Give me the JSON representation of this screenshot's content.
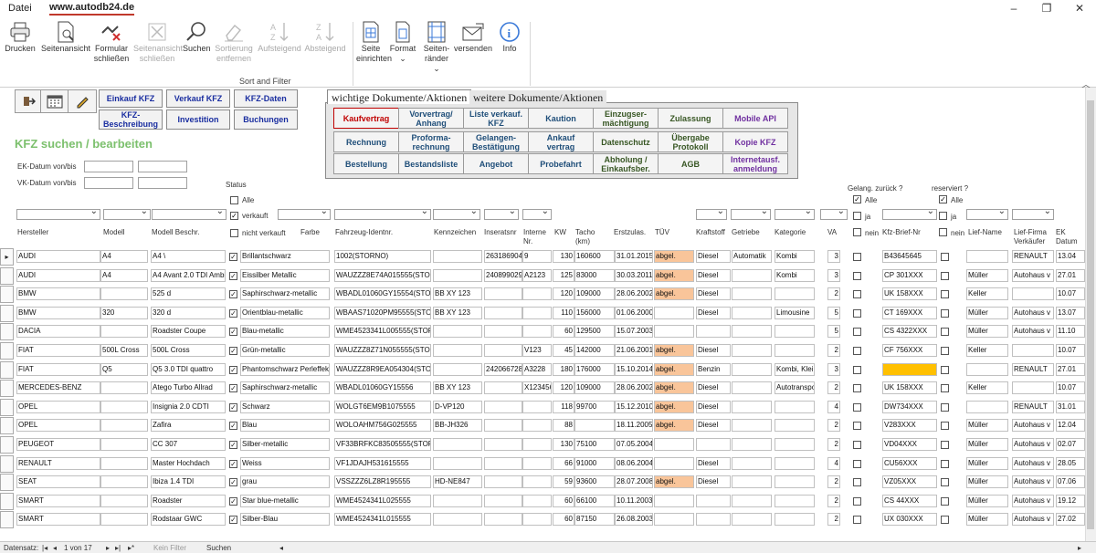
{
  "menubar": {
    "file": "Datei",
    "site": "www.autodb24.de"
  },
  "ribbon": {
    "buttons": [
      {
        "label": "Drucken",
        "icon": "printer-icon"
      },
      {
        "label": "Seitenansicht",
        "icon": "page-preview-icon"
      },
      {
        "label": "Formular\nschließen",
        "icon": "close-form-icon"
      },
      {
        "label": "Seitenansicht\nschließen",
        "icon": "close-preview-icon"
      },
      {
        "label": "Suchen",
        "icon": "search-icon"
      },
      {
        "label": "Sortierung\nentfernen",
        "icon": "eraser-icon"
      },
      {
        "label": "Aufsteigend",
        "icon": "sort-asc-icon"
      },
      {
        "label": "Absteigend",
        "icon": "sort-desc-icon"
      },
      {
        "label": "Seite\neinrichten",
        "icon": "page-setup-icon"
      },
      {
        "label": "Format\n⌄",
        "icon": "format-icon"
      },
      {
        "label": "Seiten-\nränder ⌄",
        "icon": "margins-icon"
      },
      {
        "label": "versenden",
        "icon": "mail-icon"
      },
      {
        "label": "Info",
        "icon": "info-icon"
      }
    ],
    "group_label": "Sort and Filter"
  },
  "nav": {
    "einkauf": "Einkauf KFZ",
    "verkauf": "Verkauf KFZ",
    "kfzdaten": "KFZ-Daten",
    "beschreibung": "KFZ-\nBeschreibung",
    "investition": "Investition",
    "buchungen": "Buchungen"
  },
  "heading": "KFZ suchen / bearbeiten",
  "filters": {
    "ek_label": "EK-Datum von/bis",
    "vk_label": "VK-Datum von/bis",
    "status_label": "Status",
    "alle": "Alle",
    "verkauft": "verkauft",
    "nicht_verkauft": "nicht verkauft",
    "gelang_label": "Gelang. zurück ?",
    "reserviert_label": "reserviert ?",
    "ja": "ja",
    "nein": "nein"
  },
  "tabs": {
    "tab1": "wichtige Dokumente/Aktionen",
    "tab2": "weitere Dokumente/Aktionen"
  },
  "doc_buttons": [
    {
      "label": "Kaufvertrag",
      "color": "#c00000"
    },
    {
      "label": "Vorvertrag/\nAnhang",
      "color": "#1f4e79"
    },
    {
      "label": "Liste verkauf.\nKFZ",
      "color": "#1f4e79"
    },
    {
      "label": "Kaution",
      "color": "#1f4e79"
    },
    {
      "label": "Einzugser-\nmächtigung",
      "color": "#375623"
    },
    {
      "label": "Zulassung",
      "color": "#375623"
    },
    {
      "label": "Mobile API",
      "color": "#7030a0"
    },
    {
      "label": "Rechnung",
      "color": "#1f4e79"
    },
    {
      "label": "Proforma-\nrechnung",
      "color": "#1f4e79"
    },
    {
      "label": "Gelangen-\nBestätigung",
      "color": "#1f4e79"
    },
    {
      "label": "Ankauf\nvertrag",
      "color": "#1f4e79"
    },
    {
      "label": "Datenschutz",
      "color": "#375623"
    },
    {
      "label": "Übergabe\nProtokoll",
      "color": "#375623"
    },
    {
      "label": "Kopie KFZ",
      "color": "#7030a0"
    },
    {
      "label": "Bestellung",
      "color": "#1f4e79"
    },
    {
      "label": "Bestandsliste",
      "color": "#1f4e79"
    },
    {
      "label": "Angebot",
      "color": "#1f4e79"
    },
    {
      "label": "Probefahrt",
      "color": "#1f4e79"
    },
    {
      "label": "Abholung /\nEinkaufsber.",
      "color": "#375623"
    },
    {
      "label": "AGB",
      "color": "#375623"
    },
    {
      "label": "Internetausf.\nanmeldung",
      "color": "#7030a0"
    }
  ],
  "columns": [
    "Hersteller",
    "Modell",
    "Modell Beschr.",
    "Farbe",
    "Fahrzeug-Identnr.",
    "Kennzeichen",
    "Inseratsnr",
    "Interne\nNr.",
    "KW",
    "Tacho\n(km)",
    "Erstzulas.",
    "TÜV",
    "Kraftstoff",
    "Getriebe",
    "Kategorie",
    "VA",
    "Kfz-Brief-Nr",
    "Lief-Name",
    "Lief-Firma\nVerkäufer",
    "EK Datum"
  ],
  "rows": [
    {
      "hersteller": "AUDI",
      "modell": "A4",
      "beschr": "A4 \\",
      "verkauft": true,
      "farbe": "Brillantschwarz",
      "ident": "1002(STORNO)",
      "kennz": "",
      "inserat": "26318690439",
      "intern": "9",
      "kw": "130",
      "tacho": "160600",
      "erstz": "31.01.2015",
      "tuev": "abgel.",
      "kraft": "Diesel",
      "getr": "Automatik",
      "kat": "Kombi",
      "va": "3",
      "brief": "B43645645",
      "lname": "",
      "lfirma": "RENAULT",
      "ek": "13.04"
    },
    {
      "hersteller": "AUDI",
      "modell": "A4",
      "beschr": "A4 Avant 2.0 TDI Ambition",
      "verkauft": true,
      "farbe": "Eissilber Metallic",
      "ident": "WAUZZZ8E74A015555(STORNO)",
      "kennz": "",
      "inserat": "240899029",
      "intern": "A2123",
      "kw": "125",
      "tacho": "83000",
      "erstz": "30.03.2011",
      "tuev": "abgel.",
      "kraft": "Diesel",
      "getr": "",
      "kat": "Kombi",
      "va": "3",
      "brief": "CP 301XXX",
      "lname": "Müller",
      "lfirma": "Autohaus v",
      "ek": "27.01"
    },
    {
      "hersteller": "BMW",
      "modell": "",
      "beschr": "525 d",
      "verkauft": true,
      "farbe": "Saphirschwarz-metallic",
      "ident": "WBADL01060GY15554(STORNO)",
      "kennz": "BB XY 123",
      "inserat": "",
      "intern": "",
      "kw": "120",
      "tacho": "109000",
      "erstz": "28.06.2002",
      "tuev": "abgel.",
      "kraft": "Diesel",
      "getr": "",
      "kat": "",
      "va": "2",
      "brief": "UK 158XXX",
      "lname": "Keller",
      "lfirma": "",
      "ek": "10.07"
    },
    {
      "hersteller": "BMW",
      "modell": "320",
      "beschr": "320 d",
      "verkauft": true,
      "farbe": "Orientblau-metallic",
      "ident": "WBAAS71020PM95555(STORNO)",
      "kennz": "BB XY 123",
      "inserat": "",
      "intern": "",
      "kw": "110",
      "tacho": "156000",
      "erstz": "01.06.2000",
      "tuev": "",
      "kraft": "Diesel",
      "getr": "",
      "kat": "Limousine",
      "va": "5",
      "brief": "CT 169XXX",
      "lname": "Müller",
      "lfirma": "Autohaus v",
      "ek": "13.07"
    },
    {
      "hersteller": "DACIA",
      "modell": "",
      "beschr": "Roadster Coupe",
      "verkauft": true,
      "farbe": "Blau-metallic",
      "ident": "WME4523341L005555(STORNO)",
      "kennz": "",
      "inserat": "",
      "intern": "",
      "kw": "60",
      "tacho": "129500",
      "erstz": "15.07.2003",
      "tuev": "",
      "kraft": "",
      "getr": "",
      "kat": "",
      "va": "5",
      "brief": "CS 4322XXX",
      "lname": "Müller",
      "lfirma": "Autohaus v",
      "ek": "11.10"
    },
    {
      "hersteller": "FIAT",
      "modell": "500L Cross",
      "beschr": "500L Cross",
      "verkauft": true,
      "farbe": "Grün-metallic",
      "ident": "WAUZZZ8Z71N055555(STORNO)",
      "kennz": "",
      "inserat": "",
      "intern": "V123",
      "kw": "45",
      "tacho": "142000",
      "erstz": "21.06.2001",
      "tuev": "abgel.",
      "kraft": "Diesel",
      "getr": "",
      "kat": "",
      "va": "2",
      "brief": "CF 756XXX",
      "lname": "Keller",
      "lfirma": "",
      "ek": "10.07"
    },
    {
      "hersteller": "FIAT",
      "modell": "Q5",
      "beschr": "Q5 3.0 TDI quattro",
      "verkauft": true,
      "farbe": "Phantomschwarz Perleffekt",
      "ident": "WAUZZZ8R9EA054304(STORNO)",
      "kennz": "",
      "inserat": "242066728",
      "intern": "A3228",
      "kw": "180",
      "tacho": "176000",
      "erstz": "15.10.2014",
      "tuev": "abgel.",
      "kraft": "Benzin",
      "getr": "",
      "kat": "Kombi, Klein",
      "va": "3",
      "brief": "",
      "brief_yellow": true,
      "lname": "",
      "lfirma": "RENAULT",
      "ek": "27.01"
    },
    {
      "hersteller": "MERCEDES-BENZ",
      "modell": "",
      "beschr": "Atego Turbo Allrad",
      "verkauft": true,
      "farbe": "Saphirschwarz-metallic",
      "ident": "WBADL01060GY15556",
      "kennz": "BB XY 123",
      "inserat": "",
      "intern": "X123456",
      "kw": "120",
      "tacho": "109000",
      "erstz": "28.06.2002",
      "tuev": "abgel.",
      "kraft": "Diesel",
      "getr": "",
      "kat": "Autotransporter",
      "va": "2",
      "brief": "UK 158XXX",
      "lname": "Keller",
      "lfirma": "",
      "ek": "10.07"
    },
    {
      "hersteller": "OPEL",
      "modell": "",
      "beschr": "Insignia 2.0 CDTI",
      "verkauft": true,
      "farbe": "Schwarz",
      "ident": "WOLGT6EM9B1075555",
      "kennz": "D-VP120",
      "inserat": "",
      "intern": "",
      "kw": "118",
      "tacho": "99700",
      "erstz": "15.12.2010",
      "tuev": "abgel.",
      "kraft": "Diesel",
      "getr": "",
      "kat": "",
      "va": "4",
      "brief": "DW734XXX",
      "lname": "",
      "lfirma": "RENAULT",
      "ek": "31.01"
    },
    {
      "hersteller": "OPEL",
      "modell": "",
      "beschr": "Zafira",
      "verkauft": true,
      "farbe": "Blau",
      "ident": "WOLOAHM756G025555",
      "kennz": "BB-JH326",
      "inserat": "",
      "intern": "",
      "kw": "88",
      "tacho": "",
      "erstz": "18.11.2005",
      "tuev": "abgel.",
      "kraft": "Diesel",
      "getr": "",
      "kat": "",
      "va": "2",
      "brief": "V283XXX",
      "lname": "Müller",
      "lfirma": "Autohaus v",
      "ek": "12.04"
    },
    {
      "hersteller": "PEUGEOT",
      "modell": "",
      "beschr": "CC 307",
      "verkauft": true,
      "farbe": "Silber-metallic",
      "ident": "VF33BRFKC83505555(STORNO)",
      "kennz": "",
      "inserat": "",
      "intern": "",
      "kw": "130",
      "tacho": "75100",
      "erstz": "07.05.2004",
      "tuev": "",
      "kraft": "",
      "getr": "",
      "kat": "",
      "va": "2",
      "brief": "VD04XXX",
      "lname": "Müller",
      "lfirma": "Autohaus v",
      "ek": "02.07"
    },
    {
      "hersteller": "RENAULT",
      "modell": "",
      "beschr": "Master Hochdach",
      "verkauft": true,
      "farbe": "Weiss",
      "ident": "VF1JDAJH531615555",
      "kennz": "",
      "inserat": "",
      "intern": "",
      "kw": "66",
      "tacho": "91000",
      "erstz": "08.06.2004",
      "tuev": "",
      "kraft": "Diesel",
      "getr": "",
      "kat": "",
      "va": "4",
      "brief": "CU56XXX",
      "lname": "Müller",
      "lfirma": "Autohaus v",
      "ek": "28.05"
    },
    {
      "hersteller": "SEAT",
      "modell": "",
      "beschr": "Ibiza 1.4 TDI",
      "verkauft": true,
      "farbe": "grau",
      "ident": "VSSZZZ6LZ8R195555",
      "kennz": "HD-NE847",
      "inserat": "",
      "intern": "",
      "kw": "59",
      "tacho": "93600",
      "erstz": "28.07.2008",
      "tuev": "abgel.",
      "kraft": "Diesel",
      "getr": "",
      "kat": "",
      "va": "2",
      "brief": "VZ05XXX",
      "lname": "Müller",
      "lfirma": "Autohaus v",
      "ek": "07.06"
    },
    {
      "hersteller": "SMART",
      "modell": "",
      "beschr": "Roadster",
      "verkauft": true,
      "farbe": "Star blue-metallic",
      "ident": "WME4524341L025555",
      "kennz": "",
      "inserat": "",
      "intern": "",
      "kw": "60",
      "tacho": "66100",
      "erstz": "10.11.2003",
      "tuev": "",
      "kraft": "",
      "getr": "",
      "kat": "",
      "va": "2",
      "brief": "CS 44XXX",
      "lname": "Müller",
      "lfirma": "Autohaus v",
      "ek": "19.12"
    },
    {
      "hersteller": "SMART",
      "modell": "",
      "beschr": "Rodstaar GWC",
      "verkauft": true,
      "farbe": "Silber-Blau",
      "ident": "WME4524341L015555",
      "kennz": "",
      "inserat": "",
      "intern": "",
      "kw": "60",
      "tacho": "87150",
      "erstz": "26.08.2003",
      "tuev": "",
      "kraft": "",
      "getr": "",
      "kat": "",
      "va": "2",
      "brief": "UX 030XXX",
      "lname": "Müller",
      "lfirma": "Autohaus v",
      "ek": "27.02"
    }
  ],
  "recnav": {
    "label": "Datensatz:",
    "pos": "1 von 17",
    "nofilter": "Kein Filter",
    "search": "Suchen"
  }
}
